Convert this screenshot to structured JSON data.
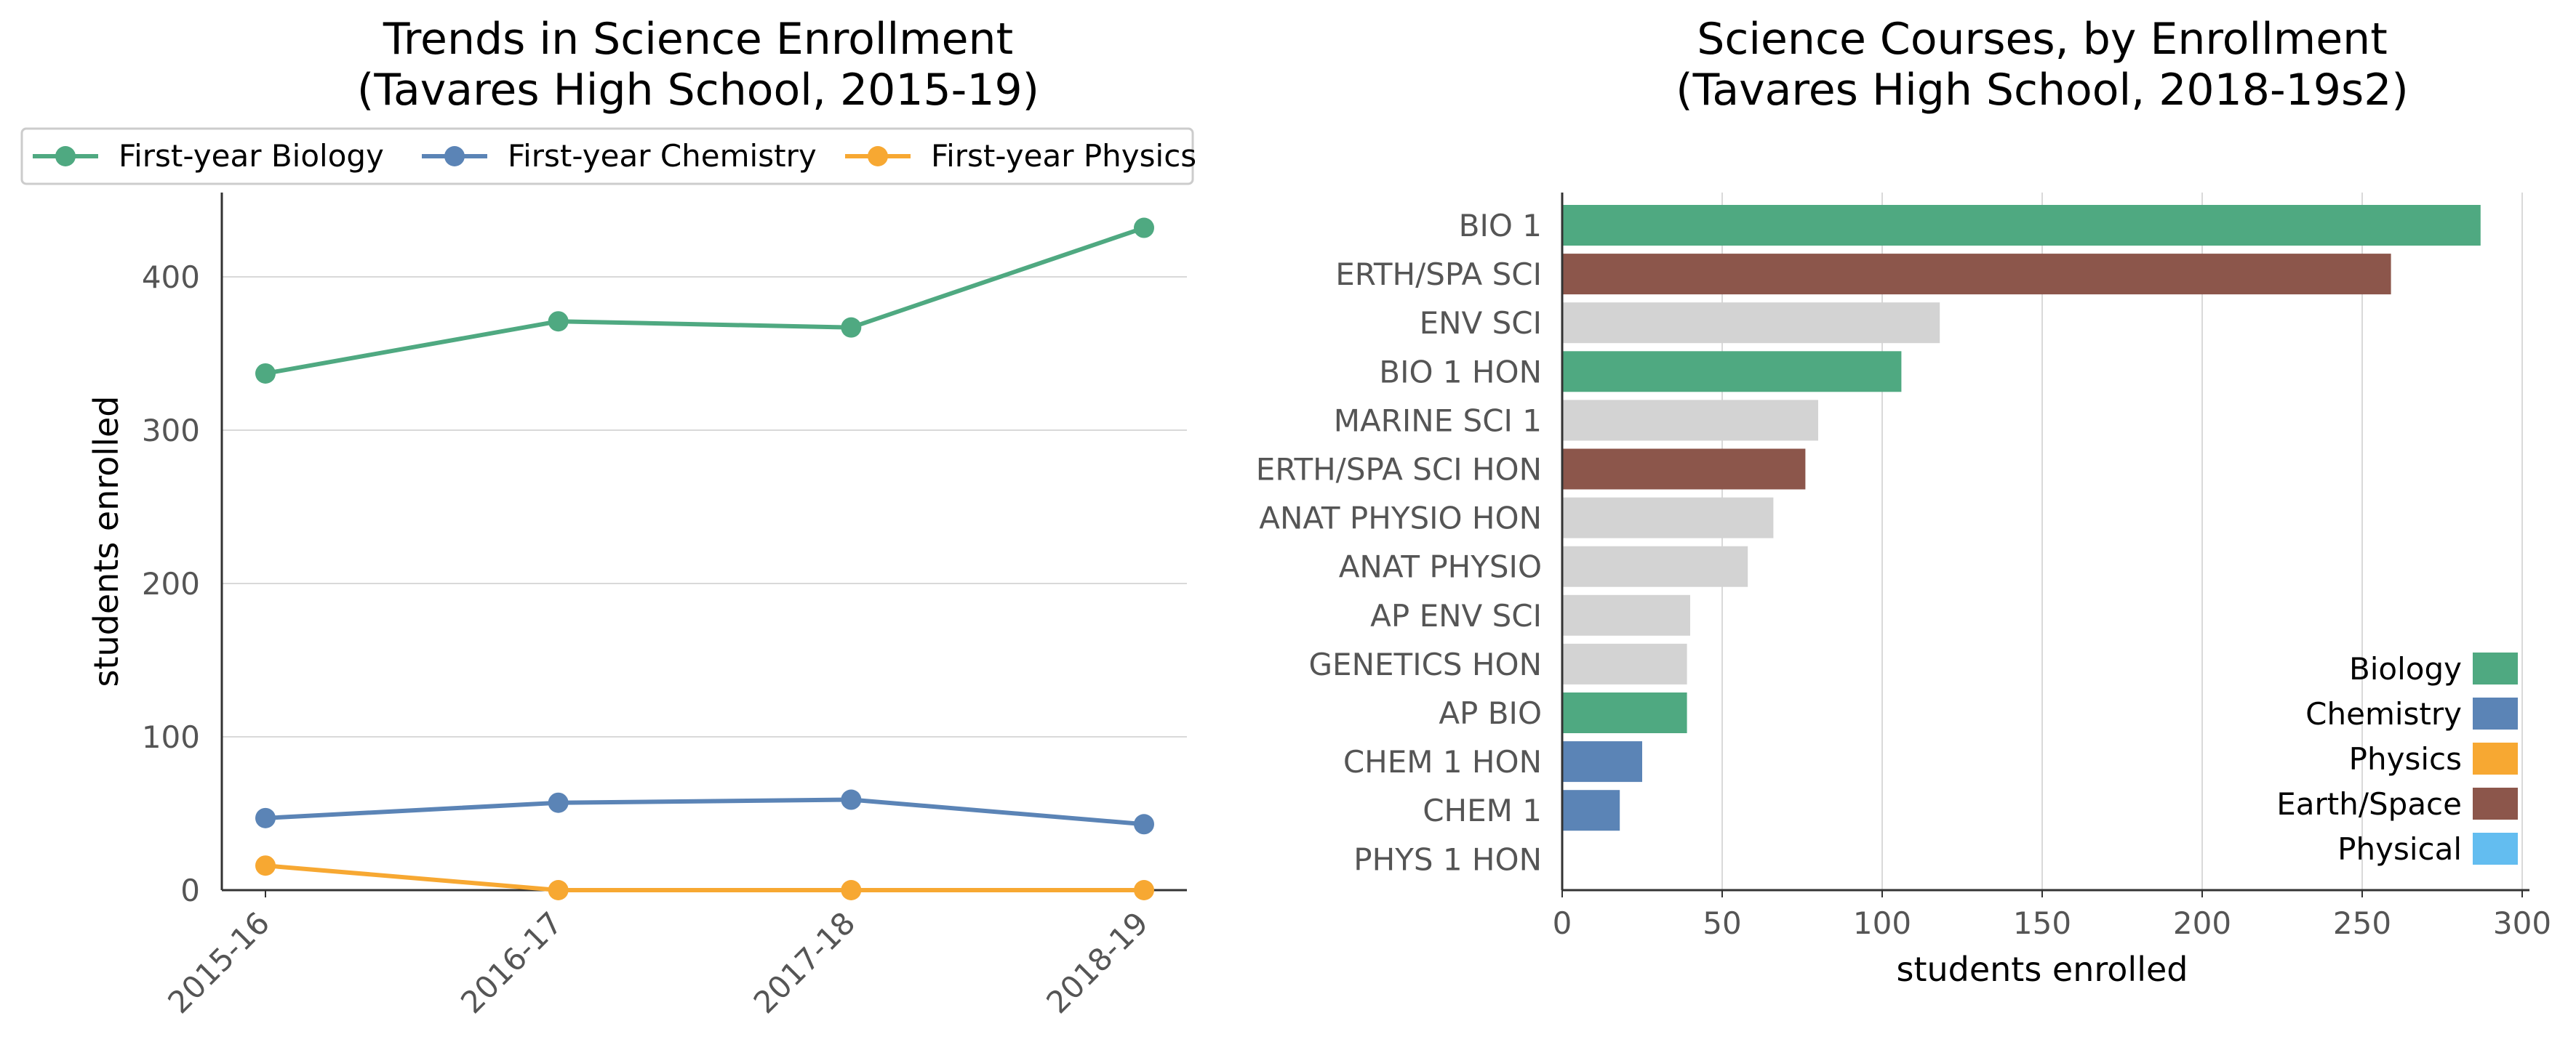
{
  "chart_data": [
    {
      "type": "line",
      "title": "Trends in Science Enrollment\n(Tavares High School, 2015-19)",
      "xlabel": "",
      "ylabel": "students enrolled",
      "categories": [
        "2015-16",
        "2016-17",
        "2017-18",
        "2018-19"
      ],
      "ylim": [
        0,
        455
      ],
      "yticks": [
        0,
        100,
        200,
        300,
        400
      ],
      "grid": "horizontal",
      "legend_position": "top",
      "series": [
        {
          "name": "First-year Biology",
          "values": [
            337,
            371,
            367,
            432
          ],
          "color": "#4fa981"
        },
        {
          "name": "First-year Chemistry",
          "values": [
            47,
            57,
            59,
            43
          ],
          "color": "#5b84b6"
        },
        {
          "name": "First-year Physics",
          "values": [
            16,
            0,
            0,
            0
          ],
          "color": "#f7a832"
        }
      ]
    },
    {
      "type": "bar",
      "orientation": "horizontal",
      "title": "Science Courses, by Enrollment\n(Tavares High School, 2018-19s2)",
      "xlabel": "students enrolled",
      "ylabel": "",
      "xlim": [
        0,
        300
      ],
      "xticks": [
        0,
        50,
        100,
        150,
        200,
        250,
        300
      ],
      "grid": "vertical",
      "legend_position": "lower-right",
      "categories": [
        "BIO 1",
        "ERTH/SPA SCI",
        "ENV SCI",
        "BIO 1 HON",
        "MARINE SCI 1",
        "ERTH/SPA SCI HON",
        "ANAT PHYSIO HON",
        "ANAT PHYSIO",
        "AP ENV SCI",
        "GENETICS HON",
        "AP BIO",
        "CHEM 1 HON",
        "CHEM 1",
        "PHYS 1 HON"
      ],
      "values": [
        287,
        259,
        118,
        106,
        80,
        76,
        66,
        58,
        40,
        39,
        39,
        25,
        18,
        0
      ],
      "bar_groups": [
        "Biology",
        "Earth/Space",
        "Other",
        "Biology",
        "Other",
        "Earth/Space",
        "Other",
        "Other",
        "Other",
        "Other",
        "Biology",
        "Chemistry",
        "Chemistry",
        "Physics"
      ],
      "group_colors": {
        "Biology": "#4fa981",
        "Chemistry": "#5b84b6",
        "Physics": "#f7a832",
        "Earth/Space": "#8c564b",
        "Physical": "#63bdf0",
        "Other": "#d3d3d3"
      },
      "legend": [
        "Biology",
        "Chemistry",
        "Physics",
        "Earth/Space",
        "Physical"
      ]
    }
  ]
}
